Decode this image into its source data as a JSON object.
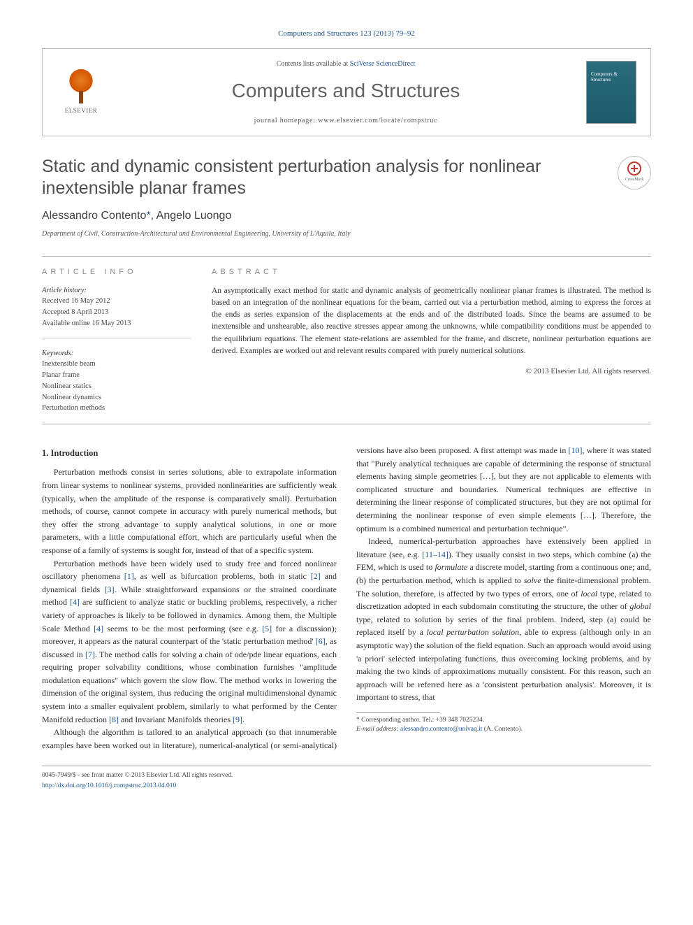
{
  "header": {
    "citation": "Computers and Structures 123 (2013) 79–92",
    "contents_prefix": "Contents lists available at ",
    "contents_link": "SciVerse ScienceDirect",
    "journal_title": "Computers and Structures",
    "homepage_prefix": "journal homepage: ",
    "homepage_url": "www.elsevier.com/locate/compstruc",
    "elsevier_label": "ELSEVIER",
    "cover_title": "Computers & Structures",
    "crossmark": "CrossMark"
  },
  "article": {
    "title": "Static and dynamic consistent perturbation analysis for nonlinear inextensible planar frames",
    "authors": "Alessandro Contento",
    "authors_sep": ", Angelo Luongo",
    "corr_mark": "*",
    "affiliation": "Department of Civil, Construction-Architectural and Environmental Engineering, University of L'Aquila, Italy"
  },
  "info": {
    "heading": "ARTICLE INFO",
    "history_label": "Article history:",
    "received": "Received 16 May 2012",
    "accepted": "Accepted 8 April 2013",
    "online": "Available online 16 May 2013",
    "keywords_label": "Keywords:",
    "keywords": [
      "Inextensible beam",
      "Planar frame",
      "Nonlinear statics",
      "Nonlinear dynamics",
      "Perturbation methods"
    ]
  },
  "abstract": {
    "heading": "ABSTRACT",
    "text": "An asymptotically exact method for static and dynamic analysis of geometrically nonlinear planar frames is illustrated. The method is based on an integration of the nonlinear equations for the beam, carried out via a perturbation method, aiming to express the forces at the ends as series expansion of the displacements at the ends and of the distributed loads. Since the beams are assumed to be inextensible and unshearable, also reactive stresses appear among the unknowns, while compatibility conditions must be appended to the equilibrium equations. The element state-relations are assembled for the frame, and discrete, nonlinear perturbation equations are derived. Examples are worked out and relevant results compared with purely numerical solutions.",
    "copyright": "© 2013 Elsevier Ltd. All rights reserved."
  },
  "body": {
    "section1_title": "1. Introduction",
    "p1a": "Perturbation methods consist in series solutions, able to extrapolate information from linear systems to nonlinear systems, provided nonlinearities are sufficiently weak (typically, when the amplitude of the response is comparatively small). Perturbation methods, of course, cannot compete in accuracy with purely numerical methods, but they offer the strong advantage to supply analytical solutions, in one or more parameters, with a little computational effort, which are particularly useful when the response of a family of systems is sought for, instead of that of a specific system.",
    "p2a": "Perturbation methods have been widely used to study free and forced nonlinear oscillatory phenomena ",
    "p2b": ", as well as bifurcation problems, both in static ",
    "p2c": " and dynamical fields ",
    "p2d": ". While straightforward expansions or the strained coordinate method ",
    "p2e": " are sufficient to analyze static or buckling problems, respectively, a richer variety of approaches is likely to be followed in dynamics. Among them, the Multiple Scale Method ",
    "p2f": " seems to be the most performing (see e.g. ",
    "p2g": " for a discussion); moreover, it appears as the natural counterpart of the 'static perturbation method' ",
    "p2h": ", as discussed in ",
    "p2i": ". The method calls for solving a chain of ode/pde linear equations, each requiring proper solvability conditions, whose combination furnishes \"amplitude modulation equations\" which govern the slow flow. The method works in lowering the dimension of the original system, thus reducing the original multidimensional dynamic system into a smaller equivalent ",
    "p2j": "problem, similarly to what performed by the Center Manifold reduction ",
    "p2k": " and Invariant Manifolds theories ",
    "p2l": ".",
    "p3a": "Although the algorithm is tailored to an analytical approach (so that innumerable examples have been worked out in literature), numerical-analytical (or semi-analytical) versions have also been proposed. A first attempt was made in ",
    "p3b": ", where it was stated that \"Purely analytical techniques are capable of determining the response of structural elements having simple geometries […], but they are not applicable to elements with complicated structure and boundaries. Numerical techniques are effective in determining the linear response of complicated structures, but they are not optimal for determining the nonlinear response of even simple elements […]. Therefore, the optimum is a combined numerical and perturbation technique\".",
    "p4a": "Indeed, numerical-perturbation approaches have extensively been applied in literature (see, e.g. ",
    "p4b": "). They usually consist in two steps, which combine (a) the FEM, which is used to ",
    "p4b_ital": "formulate",
    "p4c": " a discrete model, starting from a continuous one; and, (b) the perturbation method, which is applied to ",
    "p4c_ital": "solve",
    "p4d": " the finite-dimensional problem. The solution, therefore, is affected by two types of errors, one of ",
    "p4d_ital": "local",
    "p4e": " type, related to discretization adopted in each subdomain constituting the structure, the other of ",
    "p4e_ital": "global",
    "p4f": " type, related to solution by series of the final problem. Indeed, step (a) could be replaced itself by a ",
    "p4f_ital": "local perturbation solution",
    "p4g": ", able to express (although only in an asymptotic way) the solution of the field equation. Such an approach would avoid using 'a priori' selected interpolating functions, thus overcoming locking problems, and by making the two kinds of approximations mutually consistent. For this reason, such an approach will be referred here as a 'consistent perturbation analysis'. Moreover, it is important to stress, that",
    "r1": "[1]",
    "r2": "[2]",
    "r3": "[3]",
    "r4": "[4]",
    "r5": "[5]",
    "r6": "[6]",
    "r7": "[7]",
    "r8": "[8]",
    "r9": "[9]",
    "r10": "[10]",
    "r1114": "[11–14]"
  },
  "footnotes": {
    "corr": "* Corresponding author. Tel.: +39 348 7025234.",
    "email_label": "E-mail address: ",
    "email": "alessandro.contento@univaq.it",
    "email_author": " (A. Contento)."
  },
  "footer": {
    "issn": "0045-7949/$ - see front matter © 2013 Elsevier Ltd. All rights reserved.",
    "doi": "http://dx.doi.org/10.1016/j.compstruc.2013.04.010"
  },
  "colors": {
    "link": "#1a5490",
    "text": "#2e2e2e",
    "muted": "#888888",
    "border": "#aaaaaa",
    "cover_bg": "#2a6b7c"
  }
}
